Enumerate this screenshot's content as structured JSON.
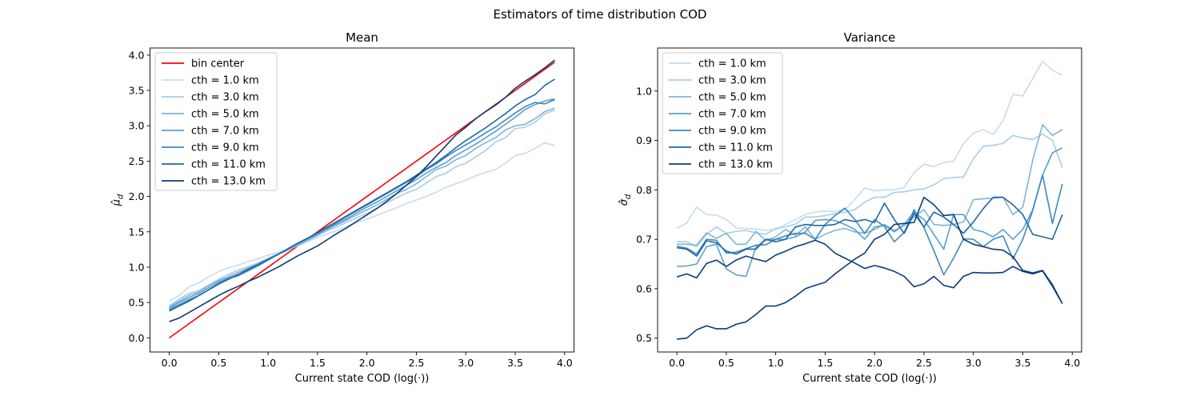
{
  "suptitle": "Estimators of time distribution COD",
  "chart_data": [
    {
      "type": "line",
      "title": "Mean",
      "xlabel": "Current state COD (log(·))",
      "ylabel": "μ̂_d",
      "xlim": [
        -0.195,
        4.095
      ],
      "ylim": [
        -0.2,
        4.1
      ],
      "xticks": [
        "0.0",
        "0.5",
        "1.0",
        "1.5",
        "2.0",
        "2.5",
        "3.0",
        "3.5",
        "4.0"
      ],
      "yticks": [
        "0.0",
        "0.5",
        "1.0",
        "1.5",
        "2.0",
        "2.5",
        "3.0",
        "3.5",
        "4.0"
      ],
      "legend": "upper-left",
      "x": [
        0.0,
        0.1,
        0.2,
        0.3,
        0.4,
        0.5,
        0.6,
        0.7,
        0.8,
        0.9,
        1.0,
        1.1,
        1.2,
        1.3,
        1.4,
        1.5,
        1.6,
        1.7,
        1.8,
        1.9,
        2.0,
        2.1,
        2.2,
        2.3,
        2.4,
        2.5,
        2.6,
        2.7,
        2.8,
        2.9,
        3.0,
        3.1,
        3.2,
        3.3,
        3.4,
        3.5,
        3.6,
        3.7,
        3.8,
        3.9
      ],
      "series": [
        {
          "name": "bin center",
          "color": "#ff0000",
          "values": [
            0.0,
            0.1,
            0.2,
            0.3,
            0.4,
            0.5,
            0.6,
            0.7,
            0.8,
            0.9,
            1.0,
            1.1,
            1.2,
            1.3,
            1.4,
            1.5,
            1.6,
            1.7,
            1.8,
            1.9,
            2.0,
            2.1,
            2.2,
            2.3,
            2.4,
            2.5,
            2.6,
            2.7,
            2.8,
            2.9,
            3.0,
            3.1,
            3.2,
            3.3,
            3.4,
            3.5,
            3.6,
            3.7,
            3.8,
            3.9
          ]
        },
        {
          "name": "cth = 1.0 km",
          "color": "#c6dbef",
          "values": [
            0.52,
            0.6,
            0.72,
            0.78,
            0.86,
            0.94,
            0.99,
            1.03,
            1.08,
            1.12,
            1.17,
            1.21,
            1.25,
            1.3,
            1.36,
            1.42,
            1.47,
            1.52,
            1.58,
            1.63,
            1.68,
            1.73,
            1.79,
            1.84,
            1.9,
            1.95,
            2.0,
            2.06,
            2.13,
            2.18,
            2.23,
            2.29,
            2.34,
            2.38,
            2.47,
            2.58,
            2.61,
            2.68,
            2.76,
            2.72
          ]
        },
        {
          "name": "cth = 3.0 km",
          "color": "#a8cee4",
          "values": [
            0.45,
            0.55,
            0.63,
            0.67,
            0.75,
            0.83,
            0.9,
            0.96,
            1.01,
            1.06,
            1.13,
            1.19,
            1.25,
            1.31,
            1.38,
            1.45,
            1.52,
            1.57,
            1.64,
            1.7,
            1.76,
            1.83,
            1.91,
            1.98,
            2.05,
            2.1,
            2.19,
            2.28,
            2.33,
            2.42,
            2.47,
            2.56,
            2.65,
            2.77,
            2.83,
            2.96,
            2.98,
            3.05,
            3.17,
            3.22
          ]
        },
        {
          "name": "cth = 5.0 km",
          "color": "#7fb5d9",
          "values": [
            0.44,
            0.52,
            0.6,
            0.65,
            0.74,
            0.81,
            0.87,
            0.93,
            0.99,
            1.05,
            1.11,
            1.18,
            1.24,
            1.31,
            1.38,
            1.45,
            1.53,
            1.6,
            1.67,
            1.74,
            1.81,
            1.88,
            1.96,
            2.04,
            2.1,
            2.18,
            2.28,
            2.38,
            2.43,
            2.52,
            2.58,
            2.68,
            2.76,
            2.83,
            2.94,
            3.0,
            3.02,
            3.1,
            3.2,
            3.25
          ]
        },
        {
          "name": "cth = 7.0 km",
          "color": "#5a9fce",
          "values": [
            0.42,
            0.5,
            0.57,
            0.63,
            0.71,
            0.79,
            0.85,
            0.9,
            0.98,
            1.04,
            1.11,
            1.18,
            1.25,
            1.33,
            1.4,
            1.47,
            1.55,
            1.62,
            1.69,
            1.77,
            1.85,
            1.92,
            2.0,
            2.08,
            2.16,
            2.24,
            2.33,
            2.41,
            2.48,
            2.58,
            2.66,
            2.74,
            2.83,
            2.92,
            3.02,
            3.12,
            3.23,
            3.3,
            3.35,
            3.38
          ]
        },
        {
          "name": "cth = 9.0 km",
          "color": "#3f86c1",
          "values": [
            0.4,
            0.47,
            0.54,
            0.6,
            0.68,
            0.77,
            0.84,
            0.88,
            0.95,
            1.02,
            1.1,
            1.18,
            1.26,
            1.34,
            1.41,
            1.48,
            1.56,
            1.64,
            1.72,
            1.8,
            1.88,
            1.96,
            2.04,
            2.12,
            2.2,
            2.28,
            2.38,
            2.46,
            2.56,
            2.65,
            2.73,
            2.81,
            2.9,
            2.98,
            3.08,
            3.18,
            3.27,
            3.33,
            3.31,
            3.37
          ]
        },
        {
          "name": "cth = 11.0 km",
          "color": "#1f66a8",
          "values": [
            0.38,
            0.45,
            0.52,
            0.6,
            0.68,
            0.76,
            0.83,
            0.9,
            0.97,
            1.04,
            1.11,
            1.18,
            1.26,
            1.34,
            1.41,
            1.49,
            1.57,
            1.65,
            1.73,
            1.81,
            1.89,
            1.97,
            2.05,
            2.13,
            2.21,
            2.3,
            2.39,
            2.48,
            2.58,
            2.69,
            2.79,
            2.88,
            2.97,
            3.07,
            3.17,
            3.28,
            3.37,
            3.44,
            3.57,
            3.66
          ]
        },
        {
          "name": "cth = 13.0 km",
          "color": "#0b3b7a",
          "values": [
            0.23,
            0.28,
            0.36,
            0.44,
            0.52,
            0.6,
            0.67,
            0.73,
            0.8,
            0.86,
            0.93,
            1.0,
            1.08,
            1.16,
            1.23,
            1.3,
            1.39,
            1.48,
            1.56,
            1.65,
            1.74,
            1.83,
            1.93,
            2.04,
            2.16,
            2.28,
            2.42,
            2.57,
            2.72,
            2.87,
            2.98,
            3.1,
            3.2,
            3.29,
            3.4,
            3.53,
            3.63,
            3.72,
            3.82,
            3.93
          ]
        }
      ]
    },
    {
      "type": "line",
      "title": "Variance",
      "xlabel": "Current state COD (log(·))",
      "ylabel": "σ̂_d",
      "xlim": [
        -0.195,
        4.095
      ],
      "ylim": [
        0.472,
        1.087
      ],
      "xticks": [
        "0.0",
        "0.5",
        "1.0",
        "1.5",
        "2.0",
        "2.5",
        "3.0",
        "3.5",
        "4.0"
      ],
      "yticks": [
        "0.5",
        "0.6",
        "0.7",
        "0.8",
        "0.9",
        "1.0"
      ],
      "legend": "upper-left",
      "x": [
        0.0,
        0.1,
        0.2,
        0.3,
        0.4,
        0.5,
        0.6,
        0.7,
        0.8,
        0.9,
        1.0,
        1.1,
        1.2,
        1.3,
        1.4,
        1.5,
        1.6,
        1.7,
        1.8,
        1.9,
        2.0,
        2.1,
        2.2,
        2.3,
        2.4,
        2.5,
        2.6,
        2.7,
        2.8,
        2.9,
        3.0,
        3.1,
        3.2,
        3.3,
        3.4,
        3.5,
        3.6,
        3.7,
        3.8,
        3.9
      ],
      "series": [
        {
          "name": "cth = 1.0 km",
          "color": "#c6dbef",
          "values": [
            0.722,
            0.733,
            0.765,
            0.75,
            0.749,
            0.74,
            0.723,
            0.722,
            0.721,
            0.718,
            0.72,
            0.73,
            0.74,
            0.75,
            0.755,
            0.757,
            0.756,
            0.76,
            0.78,
            0.804,
            0.798,
            0.8,
            0.8,
            0.805,
            0.835,
            0.852,
            0.847,
            0.855,
            0.858,
            0.893,
            0.915,
            0.922,
            0.912,
            0.94,
            0.993,
            0.99,
            1.025,
            1.06,
            1.042,
            1.032
          ]
        },
        {
          "name": "cth = 3.0 km",
          "color": "#a8cee4",
          "values": [
            0.695,
            0.695,
            0.685,
            0.71,
            0.725,
            0.712,
            0.716,
            0.718,
            0.713,
            0.71,
            0.722,
            0.725,
            0.731,
            0.745,
            0.745,
            0.748,
            0.752,
            0.755,
            0.76,
            0.775,
            0.785,
            0.785,
            0.795,
            0.796,
            0.8,
            0.802,
            0.81,
            0.823,
            0.825,
            0.826,
            0.863,
            0.888,
            0.89,
            0.894,
            0.91,
            0.905,
            0.902,
            0.913,
            0.9,
            0.845
          ]
        },
        {
          "name": "cth = 5.0 km",
          "color": "#7fb5d9",
          "values": [
            0.69,
            0.69,
            0.688,
            0.713,
            0.702,
            0.712,
            0.69,
            0.69,
            0.716,
            0.697,
            0.705,
            0.72,
            0.708,
            0.725,
            0.7,
            0.71,
            0.718,
            0.722,
            0.715,
            0.712,
            0.72,
            0.73,
            0.718,
            0.728,
            0.745,
            0.76,
            0.73,
            0.728,
            0.73,
            0.735,
            0.78,
            0.782,
            0.783,
            0.785,
            0.75,
            0.765,
            0.86,
            0.932,
            0.91,
            0.922
          ]
        },
        {
          "name": "cth = 7.0 km",
          "color": "#5a9fce",
          "values": [
            0.645,
            0.646,
            0.65,
            0.685,
            0.69,
            0.64,
            0.628,
            0.625,
            0.684,
            0.7,
            0.7,
            0.7,
            0.705,
            0.715,
            0.738,
            0.74,
            0.738,
            0.73,
            0.72,
            0.7,
            0.725,
            0.728,
            0.715,
            0.73,
            0.755,
            0.74,
            0.71,
            0.68,
            0.75,
            0.75,
            0.72,
            0.715,
            0.705,
            0.72,
            0.7,
            0.72,
            0.76,
            0.83,
            0.875,
            0.885
          ]
        },
        {
          "name": "cth = 9.0 km",
          "color": "#3f86c1",
          "values": [
            0.686,
            0.682,
            0.67,
            0.7,
            0.698,
            0.672,
            0.674,
            0.681,
            0.688,
            0.689,
            0.7,
            0.707,
            0.712,
            0.712,
            0.7,
            0.73,
            0.748,
            0.763,
            0.74,
            0.712,
            0.74,
            0.726,
            0.695,
            0.714,
            0.76,
            0.724,
            0.677,
            0.628,
            0.662,
            0.701,
            0.7,
            0.685,
            0.7,
            0.707,
            0.66,
            0.7,
            0.758,
            0.83,
            0.732,
            0.812
          ]
        },
        {
          "name": "cth = 11.0 km",
          "color": "#1f66a8",
          "values": [
            0.683,
            0.68,
            0.666,
            0.697,
            0.693,
            0.676,
            0.67,
            0.68,
            0.68,
            0.7,
            0.695,
            0.7,
            0.725,
            0.73,
            0.728,
            0.728,
            0.73,
            0.74,
            0.736,
            0.74,
            0.734,
            0.773,
            0.74,
            0.712,
            0.752,
            0.725,
            0.755,
            0.745,
            0.73,
            0.712,
            0.735,
            0.762,
            0.785,
            0.785,
            0.77,
            0.75,
            0.71,
            0.705,
            0.7,
            0.75
          ]
        },
        {
          "name": "cth = 13.0 km",
          "color": "#0b3b7a",
          "values": [
            0.624,
            0.63,
            0.622,
            0.651,
            0.658,
            0.645,
            0.658,
            0.666,
            0.66,
            0.655,
            0.668,
            0.676,
            0.685,
            0.691,
            0.698,
            0.69,
            0.672,
            0.662,
            0.652,
            0.641,
            0.647,
            0.642,
            0.635,
            0.625,
            0.604,
            0.61,
            0.625,
            0.607,
            0.602,
            0.625,
            0.633,
            0.632,
            0.632,
            0.633,
            0.645,
            0.635,
            0.63,
            0.636,
            0.605,
            0.57
          ]
        },
        {
          "name": "",
          "color": "#0b3b7a",
          "values": [
            0.498,
            0.5,
            0.517,
            0.525,
            0.519,
            0.519,
            0.528,
            0.533,
            0.548,
            0.565,
            0.565,
            0.572,
            0.585,
            0.6,
            0.607,
            0.613,
            0.63,
            0.645,
            0.66,
            0.672,
            0.7,
            0.71,
            0.73,
            0.732,
            0.734,
            0.785,
            0.77,
            0.748,
            0.75,
            0.7,
            0.69,
            0.685,
            0.68,
            0.678,
            0.665,
            0.637,
            0.632,
            0.637,
            0.608,
            0.57
          ]
        }
      ]
    }
  ]
}
